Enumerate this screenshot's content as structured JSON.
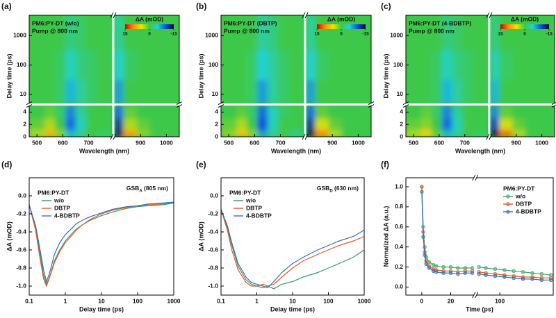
{
  "chart_data": [
    {
      "type": "heatmap",
      "panel_label": "(a)",
      "title": "PM6:PY-DT (w/o)",
      "subtitle": "Pump @ 800 nm",
      "xlabel": "Wavelength (nm)",
      "ylabel": "Delay time (ps)",
      "xsegments": [
        {
          "lim": [
            470,
            790
          ]
        },
        {
          "lim": [
            800,
            1050
          ]
        }
      ],
      "xticks": [
        500,
        600,
        700,
        900,
        1000
      ],
      "ysegments": [
        {
          "scale": "linear",
          "lim": [
            0,
            5
          ]
        },
        {
          "scale": "log",
          "lim": [
            5,
            5000
          ]
        }
      ],
      "yticks": [
        0,
        2,
        4,
        10,
        100,
        1000
      ],
      "x": [
        510,
        550,
        590,
        630,
        670,
        710,
        760,
        805,
        860,
        910,
        960,
        1020
      ],
      "y": [
        0.3,
        2,
        4,
        10,
        100,
        1000
      ],
      "z": [
        [
          3,
          8,
          2,
          -6,
          -3,
          0,
          -1,
          -14,
          9,
          2,
          0,
          0
        ],
        [
          1,
          3,
          0,
          -9,
          -4,
          0,
          0,
          -12,
          3,
          1,
          0,
          0
        ],
        [
          0,
          1,
          -1,
          -8,
          -3,
          0,
          0,
          -9,
          1,
          0,
          0,
          0
        ],
        [
          0,
          0,
          -1,
          -6,
          -3,
          -1,
          0,
          -7,
          0,
          0,
          0,
          0
        ],
        [
          0,
          0,
          -1,
          -4,
          -2,
          -1,
          0,
          -5,
          -1,
          0,
          0,
          0
        ],
        [
          0,
          0,
          0,
          -2,
          -1,
          0,
          0,
          -3,
          0,
          0,
          0,
          0
        ]
      ],
      "colorbar": {
        "label": "ΔA (mOD)",
        "lim": [
          15,
          -15
        ],
        "ticks": [
          15,
          0,
          -15
        ],
        "colors": [
          "#d40000",
          "#ff8c00",
          "#f2e600",
          "#3ec84a",
          "#22d2d2",
          "#1450e0",
          "#000038"
        ]
      }
    },
    {
      "type": "heatmap",
      "panel_label": "(b)",
      "title": "PM6:PY-DT (DBTP)",
      "subtitle": "Pump @ 800 nm",
      "xlabel": "Wavelength (nm)",
      "ylabel": "Delay time (ps)",
      "xsegments": [
        {
          "lim": [
            470,
            790
          ]
        },
        {
          "lim": [
            800,
            1050
          ]
        }
      ],
      "xticks": [
        500,
        600,
        700,
        900,
        1000
      ],
      "ysegments": [
        {
          "scale": "linear",
          "lim": [
            0,
            5
          ]
        },
        {
          "scale": "log",
          "lim": [
            5,
            5000
          ]
        }
      ],
      "yticks": [
        0,
        2,
        4,
        10,
        100,
        1000
      ],
      "x": [
        510,
        550,
        590,
        630,
        670,
        710,
        760,
        805,
        860,
        910,
        960,
        1020
      ],
      "y": [
        0.3,
        2,
        4,
        10,
        100,
        1000
      ],
      "z": [
        [
          2,
          7,
          2,
          -7,
          -3,
          0,
          -2,
          -15,
          10,
          3,
          0,
          0
        ],
        [
          1,
          3,
          0,
          -10,
          -4,
          0,
          0,
          -12,
          4,
          1,
          0,
          0
        ],
        [
          0,
          1,
          -1,
          -9,
          -4,
          -1,
          0,
          -9,
          1,
          0,
          0,
          0
        ],
        [
          0,
          0,
          -1,
          -7,
          -3,
          -1,
          0,
          -7,
          0,
          0,
          0,
          0
        ],
        [
          0,
          0,
          -1,
          -5,
          -3,
          -1,
          0,
          -5,
          -1,
          0,
          0,
          0
        ],
        [
          0,
          0,
          0,
          -3,
          -2,
          0,
          0,
          -3,
          0,
          0,
          0,
          0
        ]
      ],
      "colorbar": {
        "label": "ΔA (mOD)",
        "lim": [
          15,
          -15
        ],
        "ticks": [
          15,
          0,
          -15
        ],
        "colors": [
          "#d40000",
          "#ff8c00",
          "#f2e600",
          "#3ec84a",
          "#22d2d2",
          "#1450e0",
          "#000038"
        ]
      }
    },
    {
      "type": "heatmap",
      "panel_label": "(c)",
      "title": "PM6:PY-DT (4-BDBTP)",
      "subtitle": "Pump @ 800 nm",
      "xlabel": "Wavelength (nm)",
      "ylabel": "Delay time (ps)",
      "xsegments": [
        {
          "lim": [
            470,
            790
          ]
        },
        {
          "lim": [
            800,
            1050
          ]
        }
      ],
      "xticks": [
        500,
        600,
        700,
        900,
        1000
      ],
      "ysegments": [
        {
          "scale": "linear",
          "lim": [
            0,
            5
          ]
        },
        {
          "scale": "log",
          "lim": [
            5,
            5000
          ]
        }
      ],
      "yticks": [
        0,
        2,
        4,
        10,
        100,
        1000
      ],
      "x": [
        510,
        550,
        590,
        630,
        670,
        710,
        760,
        805,
        860,
        910,
        960,
        1020
      ],
      "y": [
        0.3,
        2,
        4,
        10,
        100,
        1000
      ],
      "z": [
        [
          3,
          6,
          1,
          -6,
          -3,
          0,
          -1,
          -15,
          11,
          3,
          0,
          0
        ],
        [
          1,
          2,
          0,
          -9,
          -4,
          0,
          0,
          -11,
          4,
          1,
          0,
          0
        ],
        [
          0,
          1,
          -1,
          -8,
          -3,
          0,
          0,
          -8,
          1,
          0,
          0,
          0
        ],
        [
          0,
          0,
          -1,
          -6,
          -3,
          -1,
          0,
          -6,
          0,
          0,
          0,
          0
        ],
        [
          0,
          0,
          -1,
          -4,
          -2,
          -1,
          0,
          -4,
          -1,
          0,
          0,
          0
        ],
        [
          0,
          0,
          0,
          -2,
          -1,
          0,
          0,
          -2,
          0,
          0,
          0,
          0
        ]
      ],
      "colorbar": {
        "label": "ΔA (mOD)",
        "lim": [
          15,
          -15
        ],
        "ticks": [
          15,
          0,
          -15
        ],
        "colors": [
          "#d40000",
          "#ff8c00",
          "#f2e600",
          "#3ec84a",
          "#22d2d2",
          "#1450e0",
          "#000038"
        ]
      }
    },
    {
      "type": "line",
      "panel_label": "(d)",
      "xlabel": "Delay time (ps)",
      "ylabel": "ΔA (mOD)",
      "xscale": "log",
      "xlim": [
        0.1,
        1000
      ],
      "xticks": [
        0.1,
        1,
        10,
        100,
        1000
      ],
      "ylim": [
        -1.1,
        0.2
      ],
      "yticks": [
        {
          "value": 0,
          "label": "0.0"
        },
        -0.2,
        -0.4,
        -0.6,
        -0.8,
        {
          "value": -1,
          "label": "-1.0"
        }
      ],
      "legend": "upper left",
      "legend_title": "PM6:PY-DT",
      "annotation": {
        "text": "GSB",
        "sub": "A",
        "rest": " (805 nm)"
      },
      "x": [
        0.1,
        0.15,
        0.2,
        0.25,
        0.3,
        0.35,
        0.4,
        0.5,
        0.7,
        1,
        1.5,
        2,
        3,
        5,
        10,
        20,
        50,
        100,
        200,
        500,
        1000
      ],
      "series": [
        {
          "name": "w/o",
          "color": "#2e9a6a",
          "values": [
            -0.1,
            -0.35,
            -0.65,
            -0.88,
            -0.98,
            -0.92,
            -0.85,
            -0.72,
            -0.6,
            -0.5,
            -0.42,
            -0.37,
            -0.32,
            -0.27,
            -0.22,
            -0.18,
            -0.14,
            -0.12,
            -0.11,
            -0.1,
            -0.08
          ]
        },
        {
          "name": "DBTP",
          "color": "#f0541e",
          "values": [
            -0.1,
            -0.38,
            -0.7,
            -0.92,
            -1.0,
            -0.93,
            -0.86,
            -0.74,
            -0.62,
            -0.52,
            -0.44,
            -0.38,
            -0.32,
            -0.26,
            -0.2,
            -0.16,
            -0.13,
            -0.11,
            -0.1,
            -0.09,
            -0.07
          ]
        },
        {
          "name": "4-BDBTP",
          "color": "#2f73b8",
          "values": [
            -0.1,
            -0.33,
            -0.6,
            -0.82,
            -0.95,
            -0.88,
            -0.8,
            -0.65,
            -0.52,
            -0.43,
            -0.36,
            -0.31,
            -0.27,
            -0.23,
            -0.19,
            -0.15,
            -0.12,
            -0.11,
            -0.09,
            -0.08,
            -0.07
          ]
        }
      ]
    },
    {
      "type": "line",
      "panel_label": "(e)",
      "xlabel": "Delay time (ps)",
      "ylabel": "ΔA (mOD)",
      "xscale": "log",
      "xlim": [
        0.1,
        1000
      ],
      "xticks": [
        0.1,
        1,
        10,
        100,
        1000
      ],
      "ylim": [
        -1.1,
        0.2
      ],
      "yticks": [
        {
          "value": 0,
          "label": "0.0"
        },
        -0.2,
        -0.4,
        -0.6,
        -0.8,
        {
          "value": -1,
          "label": "-1.0"
        }
      ],
      "legend": "upper left",
      "legend_title": "PM6:PY-DT",
      "annotation": {
        "text": "GSB",
        "sub": "D",
        "rest": " (630 nm)"
      },
      "x": [
        0.1,
        0.15,
        0.2,
        0.3,
        0.5,
        0.7,
        1,
        1.5,
        2,
        3,
        5,
        10,
        20,
        50,
        100,
        200,
        500,
        1000
      ],
      "series": [
        {
          "name": "w/o",
          "color": "#2e9a6a",
          "values": [
            -0.15,
            -0.35,
            -0.55,
            -0.78,
            -0.93,
            -0.98,
            -1.0,
            -1.02,
            -1.0,
            -1.03,
            -0.98,
            -0.95,
            -0.9,
            -0.85,
            -0.8,
            -0.75,
            -0.68,
            -0.6
          ]
        },
        {
          "name": "DBTP",
          "color": "#f0541e",
          "values": [
            -0.15,
            -0.38,
            -0.6,
            -0.82,
            -0.96,
            -1.0,
            -1.0,
            -0.98,
            -1.0,
            -0.98,
            -0.9,
            -0.8,
            -0.72,
            -0.65,
            -0.6,
            -0.55,
            -0.5,
            -0.45
          ]
        },
        {
          "name": "4-BDBTP",
          "color": "#2f73b8",
          "values": [
            -0.15,
            -0.33,
            -0.52,
            -0.75,
            -0.9,
            -0.96,
            -0.98,
            -1.0,
            -1.02,
            -0.95,
            -0.85,
            -0.75,
            -0.68,
            -0.6,
            -0.55,
            -0.5,
            -0.45,
            -0.38
          ]
        }
      ]
    },
    {
      "type": "line",
      "panel_label": "(f)",
      "xlabel": "Time (ps)",
      "ylabel": "Normalized ΔA (a.u.)",
      "xsegments": [
        {
          "lim": [
            -11,
            36
          ]
        },
        {
          "lim": [
            50,
            215
          ]
        }
      ],
      "xticks": [
        0,
        20,
        100
      ],
      "ylim": [
        -0.08,
        1.09
      ],
      "yticks": [
        {
          "value": 0,
          "label": "0.0"
        },
        0.2,
        0.4,
        0.6,
        0.8,
        {
          "value": 1,
          "label": "1.0"
        }
      ],
      "markers": true,
      "legend": "upper right",
      "legend_title": "PM6:PY-DT",
      "x": [
        0,
        1,
        2,
        3,
        5,
        8,
        10,
        15,
        20,
        25,
        30,
        35,
        55,
        70,
        90,
        110,
        130,
        150,
        170,
        190,
        210
      ],
      "series": [
        {
          "name": "w/o",
          "color": "#3aa86a",
          "values": [
            1.0,
            0.6,
            0.4,
            0.3,
            0.25,
            0.22,
            0.21,
            0.2,
            0.2,
            0.19,
            0.19,
            0.19,
            0.2,
            0.19,
            0.18,
            0.17,
            0.16,
            0.15,
            0.14,
            0.13,
            0.12
          ]
        },
        {
          "name": "DBTP",
          "color": "#f0541e",
          "values": [
            1.0,
            0.55,
            0.35,
            0.26,
            0.21,
            0.18,
            0.17,
            0.16,
            0.16,
            0.15,
            0.16,
            0.16,
            0.15,
            0.14,
            0.13,
            0.12,
            0.11,
            0.1,
            0.1,
            0.09,
            0.09
          ]
        },
        {
          "name": "4-BDBTP",
          "color": "#2f73b8",
          "values": [
            0.95,
            0.5,
            0.32,
            0.23,
            0.19,
            0.16,
            0.15,
            0.14,
            0.14,
            0.13,
            0.14,
            0.14,
            0.13,
            0.12,
            0.11,
            0.1,
            0.09,
            0.08,
            0.08,
            0.07,
            0.07
          ]
        }
      ]
    }
  ]
}
